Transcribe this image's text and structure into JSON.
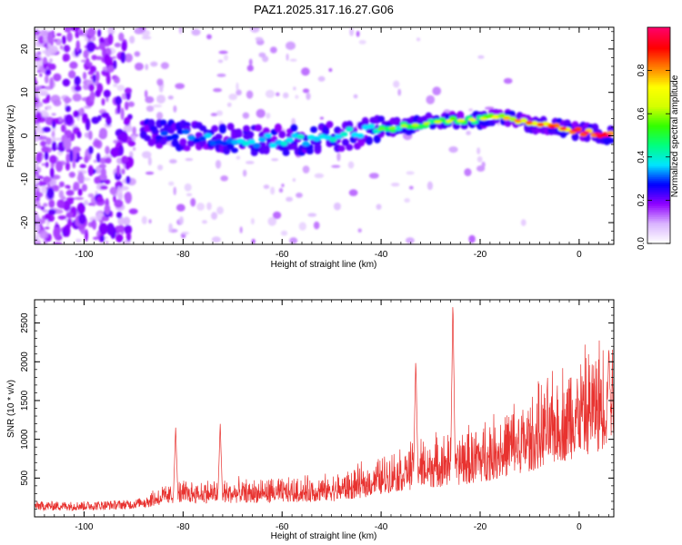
{
  "title": "PAZ1.2025.317.16.27.G06",
  "chart_data": [
    {
      "type": "heatmap",
      "xlabel": "Height of straight line (km)",
      "ylabel": "Frequency (Hz)",
      "xlim": [
        -110,
        7
      ],
      "ylim": [
        -25,
        25
      ],
      "xticks": [
        -100,
        -80,
        -60,
        -40,
        -20,
        0
      ],
      "yticks": [
        -20,
        -10,
        0,
        10,
        20
      ],
      "colorbar": {
        "label": "Normalized spectral amplitude",
        "range": [
          0,
          1
        ],
        "ticks": [
          "0.0",
          "0.2",
          "0.4",
          "0.6",
          "0.8"
        ],
        "colors": [
          "#ffffff",
          "#d9b3ff",
          "#8f00ff",
          "#0000ff",
          "#00e6ff",
          "#00ff80",
          "#33ff00",
          "#d4ff00",
          "#ffff00",
          "#ff8000",
          "#ff0000",
          "#ff0066"
        ]
      },
      "ridge": [
        {
          "x": -84,
          "f": 0.5,
          "a": 0.3
        },
        {
          "x": -80,
          "f": 0.2,
          "a": 0.3
        },
        {
          "x": -75,
          "f": -0.5,
          "a": 0.35
        },
        {
          "x": -70,
          "f": -0.8,
          "a": 0.35
        },
        {
          "x": -65,
          "f": -1.0,
          "a": 0.4
        },
        {
          "x": -60,
          "f": -1.2,
          "a": 0.4
        },
        {
          "x": -55,
          "f": -0.8,
          "a": 0.4
        },
        {
          "x": -50,
          "f": -0.3,
          "a": 0.4
        },
        {
          "x": -45,
          "f": 0.5,
          "a": 0.4
        },
        {
          "x": -40,
          "f": 1.5,
          "a": 0.45
        },
        {
          "x": -35,
          "f": 2.3,
          "a": 0.5
        },
        {
          "x": -30,
          "f": 3.0,
          "a": 0.5
        },
        {
          "x": -25,
          "f": 3.5,
          "a": 0.55
        },
        {
          "x": -20,
          "f": 3.8,
          "a": 0.55
        },
        {
          "x": -17,
          "f": 4.2,
          "a": 0.6
        },
        {
          "x": -15,
          "f": 4.0,
          "a": 0.65
        },
        {
          "x": -10,
          "f": 3.0,
          "a": 0.75
        },
        {
          "x": -5,
          "f": 2.0,
          "a": 0.8
        },
        {
          "x": 0,
          "f": 1.0,
          "a": 0.88
        },
        {
          "x": 5,
          "f": 0.2,
          "a": 0.95
        }
      ]
    },
    {
      "type": "line",
      "xlabel": "Height of straight line (km)",
      "ylabel": "SNR (10 * v/v)",
      "xlim": [
        -110,
        7
      ],
      "ylim": [
        0,
        2800
      ],
      "xticks": [
        -100,
        -80,
        -60,
        -40,
        -20,
        0
      ],
      "yticks": [
        500,
        1000,
        1500,
        2000,
        2500
      ],
      "color": "#e8322f",
      "envelope": {
        "x": [
          -110,
          -100,
          -90,
          -85,
          -80,
          -70,
          -60,
          -50,
          -45,
          -40,
          -35,
          -30,
          -25,
          -20,
          -10,
          0,
          7
        ],
        "y": [
          140,
          140,
          160,
          260,
          320,
          320,
          330,
          360,
          420,
          520,
          620,
          680,
          720,
          800,
          1050,
          1400,
          1600
        ]
      },
      "spikes": [
        {
          "x": -81.5,
          "y": 1150
        },
        {
          "x": -72.5,
          "y": 1200
        },
        {
          "x": -33,
          "y": 2050
        },
        {
          "x": -25.5,
          "y": 2800
        },
        {
          "x": 6,
          "y": 2200
        }
      ]
    }
  ]
}
